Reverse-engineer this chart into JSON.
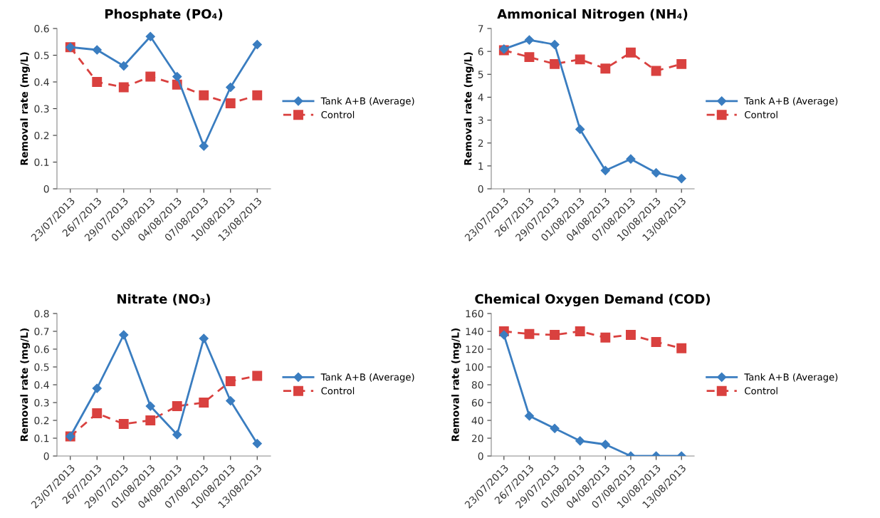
{
  "chart_data": [
    {
      "type": "line",
      "title": "Phosphate (PO₄)",
      "ylabel": "Removal rate (mg/L)",
      "categories": [
        "23/07/2013",
        "26/7/2013",
        "29/07/2013",
        "01/08/2013",
        "04/08/2013",
        "07/08/2013",
        "10/08/2013",
        "13/08/2013"
      ],
      "ylim": [
        0,
        0.6
      ],
      "yticks": [
        0,
        0.1,
        0.2,
        0.3,
        0.4,
        0.5,
        0.6
      ],
      "grid": false,
      "legend": "right",
      "series": [
        {
          "name": "Tank A+B (Average)",
          "color": "#3a7dc0",
          "marker": "diamond",
          "line_style": "solid",
          "values": [
            0.53,
            0.52,
            0.46,
            0.57,
            0.42,
            0.16,
            0.38,
            0.54
          ]
        },
        {
          "name": "Control",
          "color": "#d9413f",
          "marker": "square",
          "line_style": "dashed",
          "values": [
            0.53,
            0.4,
            0.38,
            0.42,
            0.39,
            0.35,
            0.32,
            0.35
          ]
        }
      ]
    },
    {
      "type": "line",
      "title": "Ammonical Nitrogen (NH₄)",
      "ylabel": "Removal rate (mg/L)",
      "categories": [
        "23/07/2013",
        "26/7/2013",
        "29/07/2013",
        "01/08/2013",
        "04/08/2013",
        "07/08/2013",
        "10/08/2013",
        "13/08/2013"
      ],
      "ylim": [
        0,
        7
      ],
      "yticks": [
        0,
        1,
        2,
        3,
        4,
        5,
        6,
        7
      ],
      "grid": false,
      "legend": "right",
      "series": [
        {
          "name": "Tank A+B (Average)",
          "color": "#3a7dc0",
          "marker": "diamond",
          "line_style": "solid",
          "values": [
            6.1,
            6.5,
            6.3,
            2.6,
            0.8,
            1.3,
            0.7,
            0.45
          ]
        },
        {
          "name": "Control",
          "color": "#d9413f",
          "marker": "square",
          "line_style": "dashed",
          "values": [
            6.05,
            5.75,
            5.45,
            5.65,
            5.25,
            5.95,
            5.15,
            5.45
          ]
        }
      ]
    },
    {
      "type": "line",
      "title": "Nitrate (NO₃)",
      "ylabel": "Removal rate (mg/L)",
      "categories": [
        "23/07/2013",
        "26/7/2013",
        "29/07/2013",
        "01/08/2013",
        "04/08/2013",
        "07/08/2013",
        "10/08/2013",
        "13/08/2013"
      ],
      "ylim": [
        0,
        0.8
      ],
      "yticks": [
        0,
        0.1,
        0.2,
        0.3,
        0.4,
        0.5,
        0.6,
        0.7,
        0.8
      ],
      "grid": false,
      "legend": "right",
      "series": [
        {
          "name": "Tank A+B (Average)",
          "color": "#3a7dc0",
          "marker": "diamond",
          "line_style": "solid",
          "values": [
            0.11,
            0.38,
            0.68,
            0.28,
            0.12,
            0.66,
            0.31,
            0.07
          ]
        },
        {
          "name": "Control",
          "color": "#d9413f",
          "marker": "square",
          "line_style": "dashed",
          "values": [
            0.11,
            0.24,
            0.18,
            0.2,
            0.28,
            0.3,
            0.42,
            0.45
          ]
        }
      ]
    },
    {
      "type": "line",
      "title": "Chemical Oxygen Demand (COD)",
      "ylabel": "Removal rate (mg/L)",
      "categories": [
        "23/07/2013",
        "26/7/2013",
        "29/07/2013",
        "01/08/2013",
        "04/08/2013",
        "07/08/2013",
        "10/08/2013",
        "13/08/2013"
      ],
      "ylim": [
        0,
        160
      ],
      "yticks": [
        0,
        20,
        40,
        60,
        80,
        100,
        120,
        140,
        160
      ],
      "grid": false,
      "legend": "right",
      "series": [
        {
          "name": "Tank A+B (Average)",
          "color": "#3a7dc0",
          "marker": "diamond",
          "line_style": "solid",
          "values": [
            136,
            45,
            31,
            17,
            13,
            0,
            0,
            0
          ]
        },
        {
          "name": "Control",
          "color": "#d9413f",
          "marker": "square",
          "line_style": "dashed",
          "values": [
            140,
            137,
            136,
            140,
            133,
            136,
            128,
            121
          ]
        }
      ]
    }
  ]
}
